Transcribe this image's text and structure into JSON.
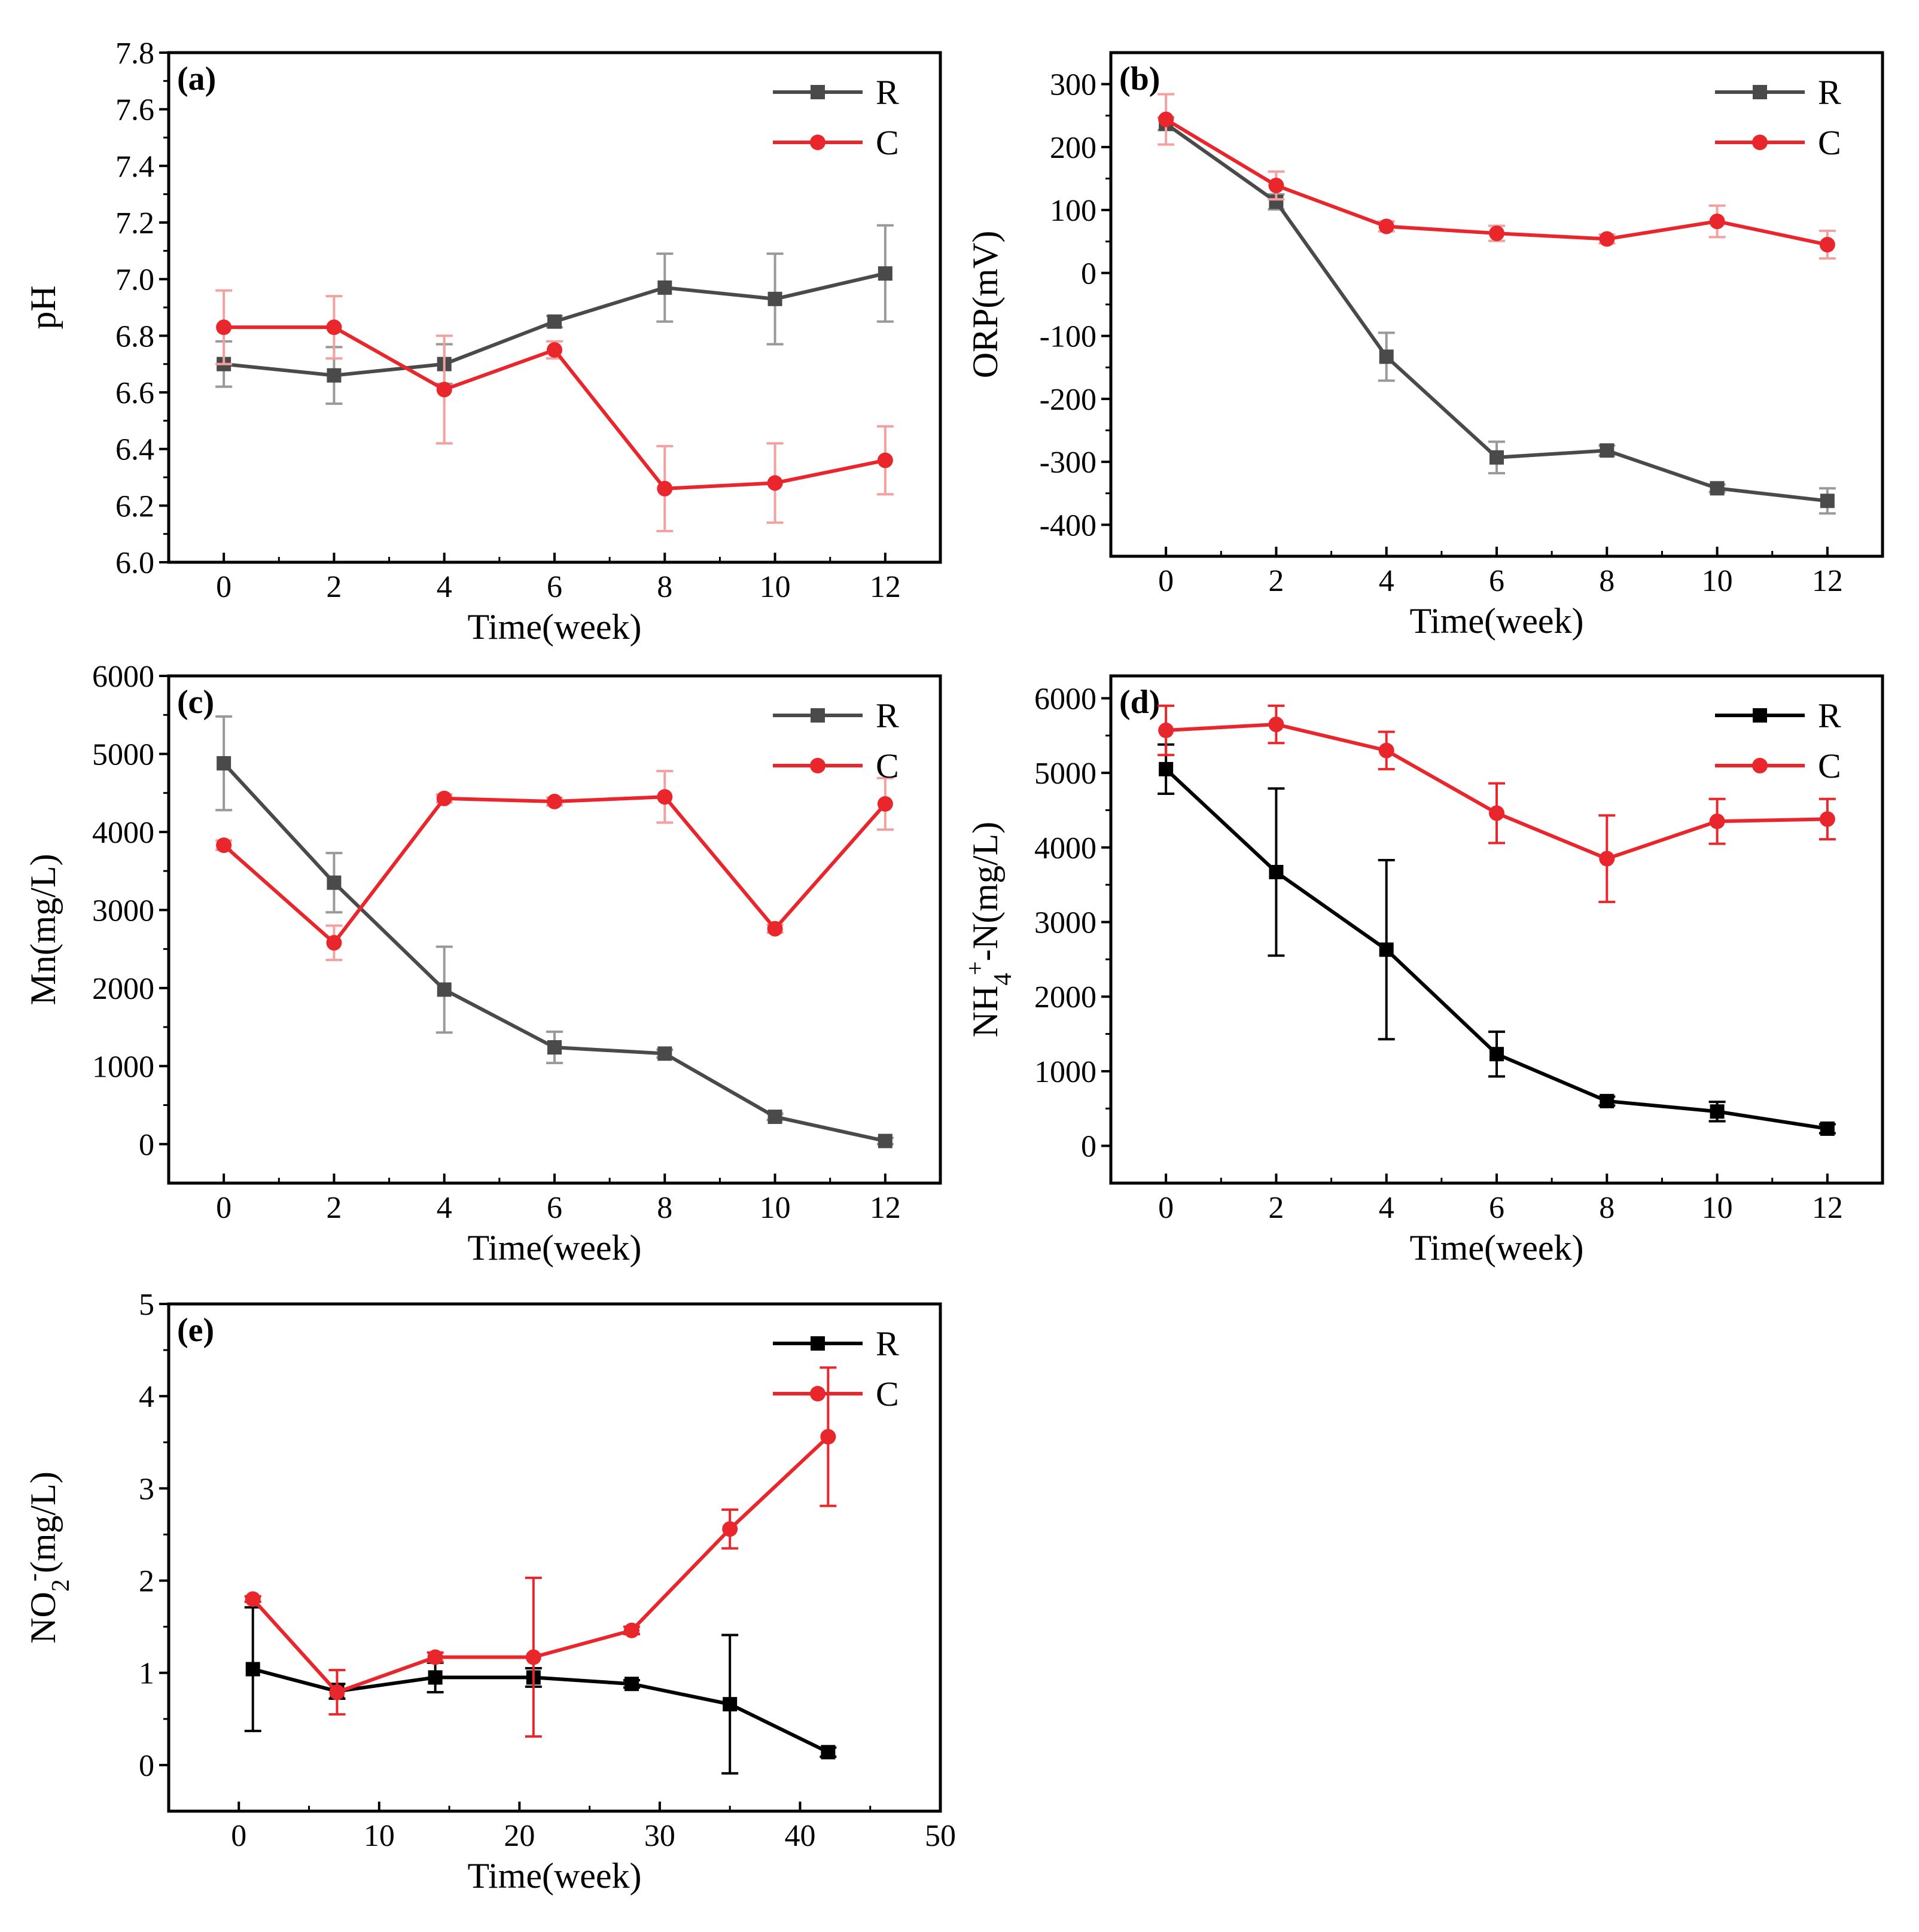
{
  "figure": {
    "series_colors": {
      "R_gray": "#4a4a4a",
      "R_black": "#000000",
      "C": "#e8262b"
    }
  },
  "chart_data": [
    {
      "id": "a",
      "type": "line",
      "panel_label": "(a)",
      "xlabel": "Time(week)",
      "ylabel": "pH",
      "xlim": [
        -1,
        13
      ],
      "ylim": [
        6.0,
        7.8
      ],
      "xticks": [
        0,
        2,
        4,
        6,
        8,
        10,
        12
      ],
      "xtick_labels": [
        "0",
        "2",
        "4",
        "6",
        "8",
        "10",
        "12"
      ],
      "yticks": [
        6.0,
        6.2,
        6.4,
        6.6,
        6.8,
        7.0,
        7.2,
        7.4,
        7.6,
        7.8
      ],
      "ytick_labels": [
        "6.0",
        "6.2",
        "6.4",
        "6.6",
        "6.8",
        "7.0",
        "7.2",
        "7.4",
        "7.6",
        "7.8"
      ],
      "legend_position": "top-right",
      "series": [
        {
          "name": "R",
          "marker": "square",
          "color": "#4a4a4a",
          "errorbar_color": "#999999",
          "x": [
            0,
            2,
            4,
            6,
            8,
            10,
            12
          ],
          "values": [
            6.7,
            6.66,
            6.7,
            6.85,
            6.97,
            6.93,
            7.02
          ],
          "errors": [
            0.08,
            0.1,
            0.07,
            0.02,
            0.12,
            0.16,
            0.17
          ]
        },
        {
          "name": "C",
          "marker": "circle",
          "color": "#e8262b",
          "errorbar_color": "#f2a0a0",
          "x": [
            0,
            2,
            4,
            6,
            8,
            10,
            12
          ],
          "values": [
            6.83,
            6.83,
            6.61,
            6.75,
            6.26,
            6.28,
            6.36
          ],
          "errors": [
            0.13,
            0.11,
            0.19,
            0.03,
            0.15,
            0.14,
            0.12
          ]
        }
      ]
    },
    {
      "id": "b",
      "type": "line",
      "panel_label": "(b)",
      "xlabel": "Time(week)",
      "ylabel": "ORP(mV)",
      "xlim": [
        -1,
        13
      ],
      "ylim": [
        -450,
        350
      ],
      "xticks": [
        0,
        2,
        4,
        6,
        8,
        10,
        12
      ],
      "xtick_labels": [
        "0",
        "2",
        "4",
        "6",
        "8",
        "10",
        "12"
      ],
      "yticks": [
        -400,
        -300,
        -200,
        -100,
        0,
        100,
        200,
        300
      ],
      "ytick_labels": [
        "-400",
        "-300",
        "-200",
        "-100",
        "0",
        "100",
        "200",
        "300"
      ],
      "legend_position": "top-right",
      "series": [
        {
          "name": "R",
          "marker": "square",
          "color": "#4a4a4a",
          "errorbar_color": "#999999",
          "x": [
            0,
            2,
            4,
            6,
            8,
            10,
            12
          ],
          "values": [
            237,
            113,
            -133,
            -293,
            -282,
            -342,
            -362
          ],
          "errors": [
            10,
            12,
            38,
            25,
            8,
            6,
            20
          ]
        },
        {
          "name": "C",
          "marker": "circle",
          "color": "#e8262b",
          "errorbar_color": "#f2a0a0",
          "x": [
            0,
            2,
            4,
            6,
            8,
            10,
            12
          ],
          "values": [
            244,
            139,
            74,
            63,
            54,
            82,
            45
          ],
          "errors": [
            40,
            22,
            8,
            12,
            7,
            25,
            22
          ]
        }
      ]
    },
    {
      "id": "c",
      "type": "line",
      "panel_label": "(c)",
      "xlabel": "Time(week)",
      "ylabel": "Mn(mg/L)",
      "xlim": [
        -1,
        13
      ],
      "ylim": [
        -500,
        6000
      ],
      "xticks": [
        0,
        2,
        4,
        6,
        8,
        10,
        12
      ],
      "xtick_labels": [
        "0",
        "2",
        "4",
        "6",
        "8",
        "10",
        "12"
      ],
      "yticks": [
        0,
        1000,
        2000,
        3000,
        4000,
        5000,
        6000
      ],
      "ytick_labels": [
        "0",
        "1000",
        "2000",
        "3000",
        "4000",
        "5000",
        "6000"
      ],
      "legend_position": "top-right",
      "series": [
        {
          "name": "R",
          "marker": "square",
          "color": "#4a4a4a",
          "errorbar_color": "#999999",
          "x": [
            0,
            2,
            4,
            6,
            8,
            10,
            12
          ],
          "values": [
            4880,
            3350,
            1980,
            1240,
            1160,
            350,
            40
          ],
          "errors": [
            600,
            380,
            550,
            200,
            50,
            40,
            40
          ]
        },
        {
          "name": "C",
          "marker": "circle",
          "color": "#e8262b",
          "errorbar_color": "#f2a0a0",
          "x": [
            0,
            2,
            4,
            6,
            8,
            10,
            12
          ],
          "values": [
            3830,
            2580,
            4430,
            4390,
            4450,
            2760,
            4360
          ],
          "errors": [
            60,
            220,
            50,
            50,
            330,
            50,
            330
          ]
        }
      ]
    },
    {
      "id": "d",
      "type": "line",
      "panel_label": "(d)",
      "xlabel": "Time(week)",
      "ylabel": "NH4+-N(mg/L)",
      "ylabel_parts": {
        "base": "NH",
        "sub": "4",
        "sup": "+",
        "rest": "-N(mg/L)"
      },
      "xlim": [
        -1,
        13
      ],
      "ylim": [
        -500,
        6300
      ],
      "xticks": [
        0,
        2,
        4,
        6,
        8,
        10,
        12
      ],
      "xtick_labels": [
        "0",
        "2",
        "4",
        "6",
        "8",
        "10",
        "12"
      ],
      "yticks": [
        0,
        1000,
        2000,
        3000,
        4000,
        5000,
        6000
      ],
      "ytick_labels": [
        "0",
        "1000",
        "2000",
        "3000",
        "4000",
        "5000",
        "6000"
      ],
      "legend_position": "top-right",
      "series": [
        {
          "name": "R",
          "marker": "square",
          "color": "#000000",
          "errorbar_color": "#000000",
          "x": [
            0,
            2,
            4,
            6,
            8,
            10,
            12
          ],
          "values": [
            5050,
            3670,
            2630,
            1230,
            600,
            460,
            230
          ],
          "errors": [
            330,
            1120,
            1200,
            300,
            60,
            130,
            60
          ]
        },
        {
          "name": "C",
          "marker": "circle",
          "color": "#e8262b",
          "errorbar_color": "#e8262b",
          "x": [
            0,
            2,
            4,
            6,
            8,
            10,
            12
          ],
          "values": [
            5570,
            5650,
            5300,
            4460,
            3850,
            4350,
            4380
          ],
          "errors": [
            330,
            250,
            250,
            400,
            580,
            300,
            270
          ]
        }
      ]
    },
    {
      "id": "e",
      "type": "line",
      "panel_label": "(e)",
      "xlabel": "Time(week)",
      "ylabel": "NO2-(mg/L)",
      "ylabel_parts": {
        "base": "NO",
        "sub": "2",
        "sup": "-",
        "rest": "(mg/L)"
      },
      "xlim": [
        -5,
        50
      ],
      "ylim": [
        -0.5,
        5
      ],
      "xticks": [
        0,
        10,
        20,
        30,
        40,
        50
      ],
      "xtick_labels": [
        "0",
        "10",
        "20",
        "30",
        "40",
        "50"
      ],
      "yticks": [
        0,
        1,
        2,
        3,
        4,
        5
      ],
      "ytick_labels": [
        "0",
        "1",
        "2",
        "3",
        "4",
        "5"
      ],
      "legend_position": "top-right",
      "series": [
        {
          "name": "R",
          "marker": "square",
          "color": "#000000",
          "errorbar_color": "#000000",
          "x": [
            1,
            7,
            14,
            21,
            28,
            35,
            42
          ],
          "values": [
            1.04,
            0.8,
            0.95,
            0.95,
            0.88,
            0.66,
            0.14
          ],
          "errors": [
            0.67,
            0.08,
            0.16,
            0.1,
            0.04,
            0.75,
            0.05
          ]
        },
        {
          "name": "C",
          "marker": "circle",
          "color": "#e8262b",
          "errorbar_color": "#e8262b",
          "x": [
            1,
            7,
            14,
            21,
            28,
            35,
            42
          ],
          "values": [
            1.8,
            0.79,
            1.17,
            1.17,
            1.46,
            2.56,
            3.56
          ],
          "errors": [
            0.03,
            0.24,
            0.05,
            0.86,
            0.04,
            0.21,
            0.75
          ]
        }
      ]
    }
  ]
}
